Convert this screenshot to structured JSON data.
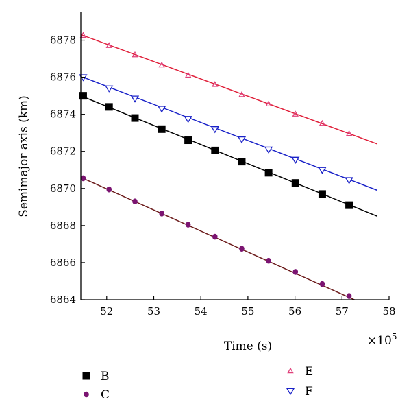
{
  "chart_data": {
    "type": "line",
    "xlabel": "Time (s)",
    "ylabel": "Semimajor axis (km)",
    "x_multiplier": "×10",
    "x_multiplier_exp": "5",
    "xlim": [
      51.45,
      58
    ],
    "ylim": [
      6864,
      6879.5
    ],
    "x_ticks": [
      52,
      53,
      54,
      55,
      56,
      57,
      58
    ],
    "y_ticks": [
      6864,
      6866,
      6868,
      6870,
      6872,
      6874,
      6876,
      6878
    ],
    "grid": false,
    "legend_position": "bottom",
    "series": [
      {
        "name": "B",
        "marker": "square",
        "marker_color": "#000000",
        "line_color": "#000000",
        "line_start": [
          51.45,
          6875.0
        ],
        "line_end": [
          57.75,
          6868.5
        ],
        "x": [
          51.5,
          52.05,
          52.6,
          53.17,
          53.73,
          54.3,
          54.87,
          55.44,
          56.01,
          56.58,
          57.15
        ],
        "values": [
          6875.0,
          6874.4,
          6873.8,
          6873.2,
          6872.6,
          6872.05,
          6871.45,
          6870.85,
          6870.3,
          6869.7,
          6869.1
        ]
      },
      {
        "name": "C",
        "marker": "circle",
        "marker_color": "#7b1471",
        "line_color": "#6b1a1a",
        "line_start": [
          51.45,
          6870.6
        ],
        "line_end": [
          57.35,
          6863.9
        ],
        "x": [
          51.5,
          52.05,
          52.6,
          53.17,
          53.73,
          54.3,
          54.87,
          55.44,
          56.01,
          56.58,
          57.15
        ],
        "values": [
          6870.55,
          6869.95,
          6869.3,
          6868.65,
          6868.05,
          6867.4,
          6866.75,
          6866.1,
          6865.5,
          6864.85,
          6864.2
        ]
      },
      {
        "name": "E",
        "marker": "triangle-up",
        "marker_color": "#e0407a",
        "line_color": "#e0203a",
        "line_start": [
          51.45,
          6878.3
        ],
        "line_end": [
          57.75,
          6872.4
        ],
        "x": [
          51.5,
          52.05,
          52.6,
          53.17,
          53.73,
          54.3,
          54.87,
          55.44,
          56.01,
          56.58,
          57.15
        ],
        "values": [
          6878.25,
          6877.7,
          6877.2,
          6876.65,
          6876.1,
          6875.6,
          6875.05,
          6874.55,
          6874.0,
          6873.5,
          6872.95
        ]
      },
      {
        "name": "F",
        "marker": "triangle-down",
        "marker_color": "#1a22c8",
        "line_color": "#1a22c8",
        "line_start": [
          51.45,
          6876.05
        ],
        "line_end": [
          57.75,
          6869.9
        ],
        "x": [
          51.5,
          52.05,
          52.6,
          53.17,
          53.73,
          54.3,
          54.87,
          55.44,
          56.01,
          56.58,
          57.15
        ],
        "values": [
          6876.0,
          6875.4,
          6874.85,
          6874.3,
          6873.75,
          6873.2,
          6872.65,
          6872.1,
          6871.55,
          6871.0,
          6870.45
        ]
      }
    ]
  }
}
